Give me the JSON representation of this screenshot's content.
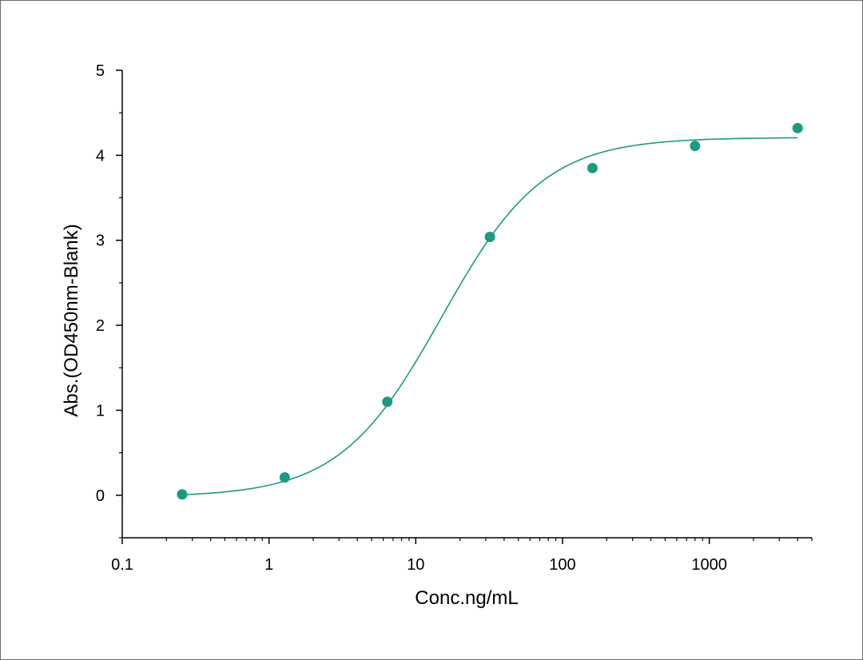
{
  "chart_data": {
    "type": "scatter",
    "title": "",
    "xlabel": "Conc.ng/mL",
    "ylabel": "Abs.(OD450nm-Blank)",
    "x_scale": "log",
    "xlim": [
      0.1,
      5000
    ],
    "ylim": [
      -0.5,
      5
    ],
    "x_ticks": [
      0.1,
      1,
      10,
      100,
      1000
    ],
    "x_tick_labels": [
      "0.1",
      "1",
      "10",
      "100",
      "1000"
    ],
    "y_ticks": [
      0,
      1,
      2,
      3,
      4,
      5
    ],
    "y_tick_labels": [
      "0",
      "1",
      "2",
      "3",
      "4",
      "5"
    ],
    "grid": false,
    "legend": "none",
    "series": [
      {
        "x": [
          0.256,
          1.28,
          6.4,
          32,
          160,
          800,
          4000
        ],
        "y": [
          0.01,
          0.21,
          1.1,
          3.04,
          3.85,
          4.11,
          4.32
        ],
        "color": "#1a9a80",
        "marker": "circle"
      }
    ],
    "fit_curve": {
      "type": "4PL",
      "bottom": -0.02,
      "top": 4.21,
      "ec50": 15,
      "hill": 1.25,
      "x_range": [
        0.256,
        4000
      ],
      "color": "#1a9a80"
    }
  }
}
